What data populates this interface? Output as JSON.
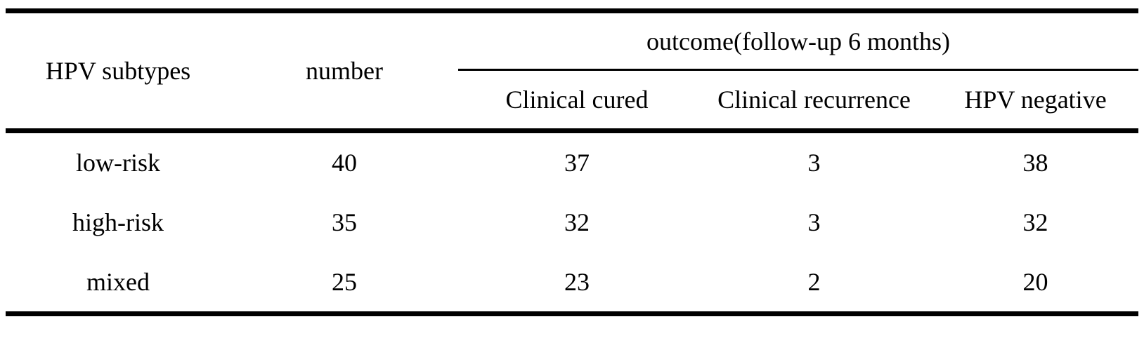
{
  "table": {
    "col_headers": {
      "hpv_subtypes": "HPV subtypes",
      "number": "number"
    },
    "spanner": {
      "label": "outcome(follow-up 6 months)"
    },
    "sub_headers": {
      "clinical_cured": "Clinical cured",
      "clinical_recurrence": "Clinical recurrence",
      "hpv_negative": "HPV negative"
    },
    "rows": [
      {
        "hpv_subtype": "low-risk",
        "number": "40",
        "clinical_cured": "37",
        "clinical_recurrence": "3",
        "hpv_negative": "38"
      },
      {
        "hpv_subtype": "high-risk",
        "number": "35",
        "clinical_cured": "32",
        "clinical_recurrence": "3",
        "hpv_negative": "32"
      },
      {
        "hpv_subtype": "mixed",
        "number": "25",
        "clinical_cured": "23",
        "clinical_recurrence": "2",
        "hpv_negative": "20"
      }
    ],
    "colors": {
      "text": "#000000",
      "background": "#ffffff",
      "rule": "#000000"
    }
  },
  "chart_data": {
    "type": "table",
    "title": "",
    "column_group": "outcome(follow-up 6 months)",
    "columns": [
      "HPV subtypes",
      "number",
      "Clinical cured",
      "Clinical recurrence",
      "HPV negative"
    ],
    "rows": [
      [
        "low-risk",
        40,
        37,
        3,
        38
      ],
      [
        "high-risk",
        35,
        32,
        3,
        32
      ],
      [
        "mixed",
        25,
        23,
        2,
        20
      ]
    ]
  }
}
